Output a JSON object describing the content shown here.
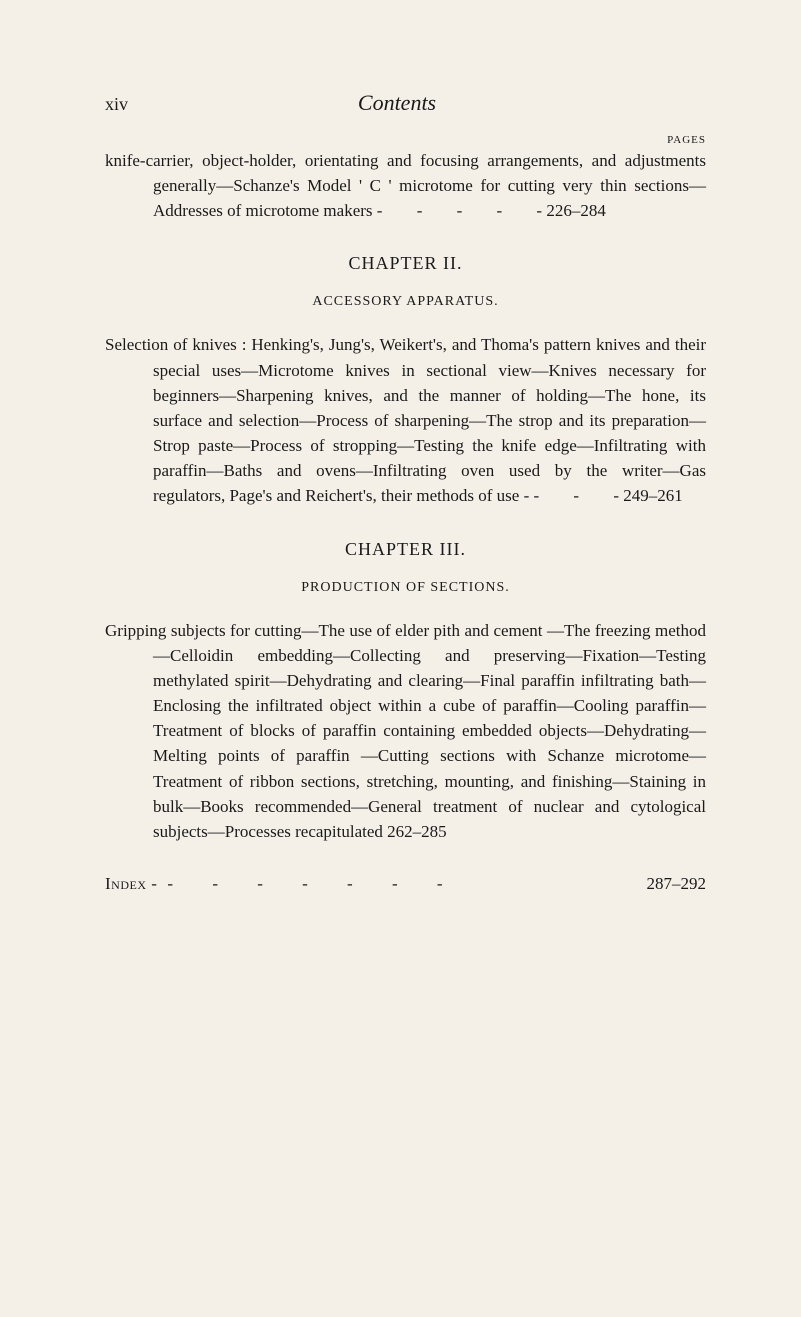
{
  "header": {
    "page_roman": "xiv",
    "title": "Contents",
    "pages_label": "PAGES"
  },
  "entries": [
    {
      "text": "knife-carrier, object-holder, orientating and focusing arrangements, and adjustments generally—Schanze's Model ' C ' microtome for cutting very thin sections—Addresses of microtome makers",
      "dashes": "-     -     -     -     -",
      "page_range": "226–284"
    }
  ],
  "chapter2": {
    "heading": "CHAPTER II.",
    "subheading": "ACCESSORY APPARATUS.",
    "entry": {
      "text": "Selection of knives : Henking's, Jung's, Weikert's, and Thoma's pattern knives and their special uses—Microtome knives in sectional view—Knives necessary for beginners—Sharpening knives, and the manner of holding—The hone, its surface and selection—Process of sharpening—The strop and its preparation—Strop paste—Process of stropping—Testing the knife edge—Infiltrating with paraffin—Baths and ovens—Infiltrating oven used by the writer—Gas regulators, Page's and Reichert's, their methods of use -",
      "dashes": "-     -     -",
      "page_range": "249–261"
    }
  },
  "chapter3": {
    "heading": "CHAPTER III.",
    "subheading": "PRODUCTION OF SECTIONS.",
    "entry": {
      "text": "Gripping subjects for cutting—The use of elder pith and cement —The freezing method—Celloidin embedding—Collecting and preserving—Fixation—Testing methylated spirit—Dehydrating and clearing—Final paraffin infiltrating bath—Enclosing the infiltrated object within a cube of paraffin—Cooling paraffin—Treatment of blocks of paraffin containing embedded objects—Dehydrating—Melting points of paraffin —Cutting sections with Schanze microtome—Treatment of ribbon sections, stretching, mounting, and finishing—Staining in bulk—Books recommended—General treatment of nuclear and cytological subjects—Processes recapitulated",
      "page_range": "262–285"
    }
  },
  "index": {
    "label": "Index -",
    "dashes": "-  -  -  -  -  -  -",
    "page_range": "287–292"
  }
}
